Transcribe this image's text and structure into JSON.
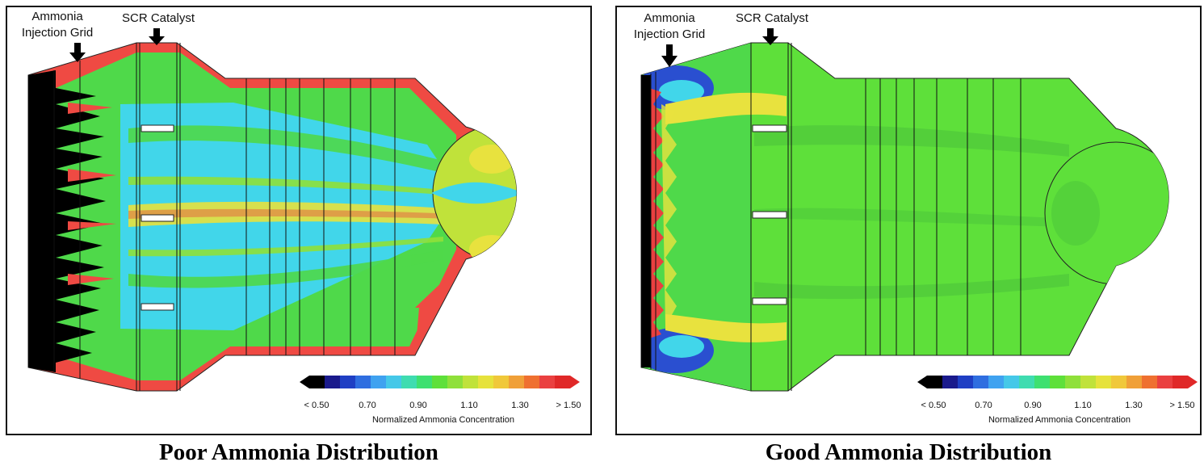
{
  "panels": [
    {
      "id": "poor",
      "caption": "Poor Ammonia Distribution",
      "label_aig": [
        "Ammonia",
        "Injection Grid"
      ],
      "label_scr": "SCR Catalyst"
    },
    {
      "id": "good",
      "caption": "Good Ammonia Distribution",
      "label_aig": [
        "Ammonia",
        "Injection Grid"
      ],
      "label_scr": "SCR Catalyst"
    }
  ],
  "legend": {
    "title": "Normalized Ammonia Concentration",
    "ticks": [
      "< 0.50",
      "0.70",
      "0.90",
      "1.10",
      "1.30",
      "> 1.50"
    ],
    "colors": [
      "#000000",
      "#1a1a8c",
      "#1f3fc4",
      "#2f6ee0",
      "#3fa2f0",
      "#45c8e8",
      "#3fdcb0",
      "#3ee070",
      "#5ee03a",
      "#8fe03a",
      "#c0e23a",
      "#e6e23c",
      "#f0c83a",
      "#f0a038",
      "#ef7030",
      "#ea4040",
      "#e02828"
    ]
  },
  "colors": {
    "red": "#ef4a43",
    "black": "#000000",
    "cyan": "#41d6ea",
    "green": "#4fd94a",
    "yellow": "#e8e23e",
    "blue": "#2a4fd0"
  }
}
